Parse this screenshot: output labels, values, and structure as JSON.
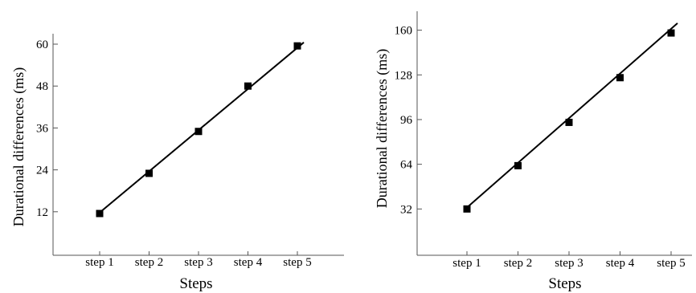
{
  "chart_data": [
    {
      "type": "line",
      "title": "",
      "xlabel": "Steps",
      "ylabel": "Durational differences (ms)",
      "categories": [
        "step 1",
        "step 2",
        "step 3",
        "step 4",
        "step 5"
      ],
      "yticks": [
        12,
        24,
        36,
        48,
        60
      ],
      "ylim": [
        0,
        64
      ],
      "series": [
        {
          "values": [
            11.5,
            23,
            35,
            48,
            59.5
          ]
        }
      ],
      "fit_line": {
        "y_start": 11,
        "y_end": 60.5
      },
      "grid": false,
      "marker": "square",
      "colors": {
        "line": "#000000",
        "marker": "#000000"
      }
    },
    {
      "type": "line",
      "title": "",
      "xlabel": "Steps",
      "ylabel": "Durational differences (ms)",
      "categories": [
        "step 1",
        "step 2",
        "step 3",
        "step 4",
        "step 5"
      ],
      "yticks": [
        32,
        64,
        96,
        128,
        160
      ],
      "ylim": [
        0,
        170
      ],
      "series": [
        {
          "values": [
            32,
            63,
            94,
            126,
            158
          ]
        }
      ],
      "fit_line": {
        "y_start": 31,
        "y_end": 165
      },
      "grid": false,
      "marker": "square",
      "colors": {
        "line": "#000000",
        "marker": "#000000"
      }
    }
  ]
}
